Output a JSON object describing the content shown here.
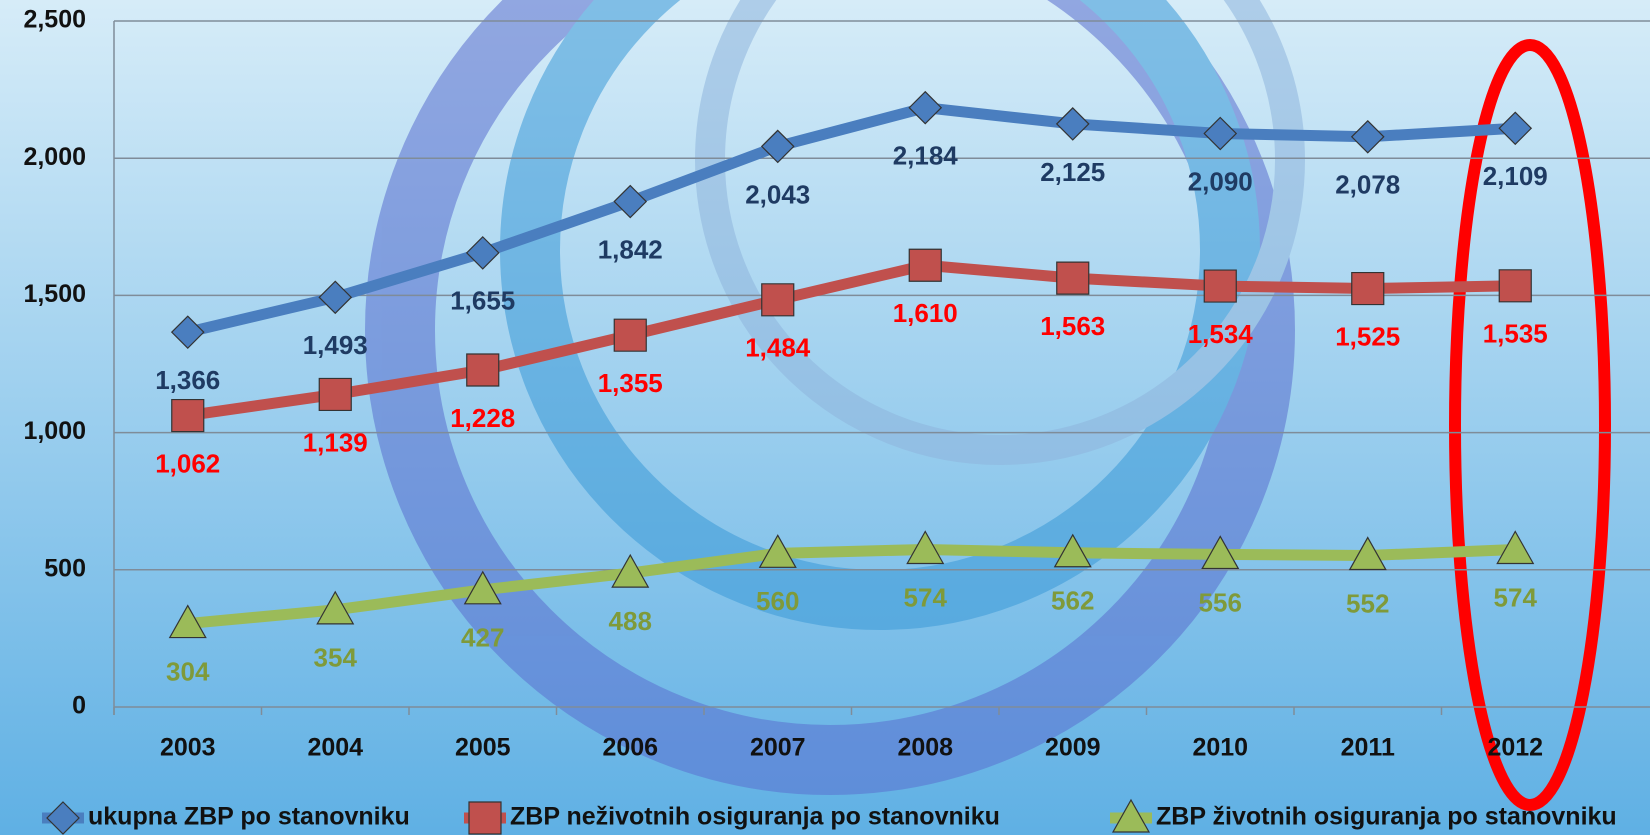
{
  "chart_data": {
    "type": "line",
    "categories": [
      "2003",
      "2004",
      "2005",
      "2006",
      "2007",
      "2008",
      "2009",
      "2010",
      "2011",
      "2012"
    ],
    "series": [
      {
        "name": "ukupna ZBP po stanovniku",
        "color": "#4a7ebf",
        "label_color": "#1f3b63",
        "marker": "diamond",
        "values": [
          1366,
          1493,
          1655,
          1842,
          2043,
          2184,
          2125,
          2090,
          2078,
          2109
        ],
        "value_labels": [
          "1,366",
          "1,493",
          "1,655",
          "1,842",
          "2,043",
          "2,184",
          "2,125",
          "2,090",
          "2,078",
          "2,109"
        ]
      },
      {
        "name": "ZBP neživotnih osiguranja po stanovniku",
        "color": "#c0504d",
        "label_color": "#ff0000",
        "marker": "square",
        "values": [
          1062,
          1139,
          1228,
          1355,
          1484,
          1610,
          1563,
          1534,
          1525,
          1535
        ],
        "value_labels": [
          "1,062",
          "1,139",
          "1,228",
          "1,355",
          "1,484",
          "1,610",
          "1,563",
          "1,534",
          "1,525",
          "1,535"
        ]
      },
      {
        "name": "ZBP životnih osiguranja po stanovniku",
        "color": "#9bbb59",
        "label_color": "#7f9a3a",
        "marker": "triangle",
        "values": [
          304,
          354,
          427,
          488,
          560,
          574,
          562,
          556,
          552,
          574
        ],
        "value_labels": [
          "304",
          "354",
          "427",
          "488",
          "560",
          "574",
          "562",
          "556",
          "552",
          "574"
        ]
      }
    ],
    "ylim": [
      0,
      2500
    ],
    "yticks": [
      {
        "value": 0,
        "label": "0"
      },
      {
        "value": 500,
        "label": "500"
      },
      {
        "value": 1000,
        "label": "1,000"
      },
      {
        "value": 1500,
        "label": "1,500"
      },
      {
        "value": 2000,
        "label": "2,000"
      },
      {
        "value": 2500,
        "label": "2,500"
      }
    ],
    "grid": true,
    "legend": "bottom"
  }
}
